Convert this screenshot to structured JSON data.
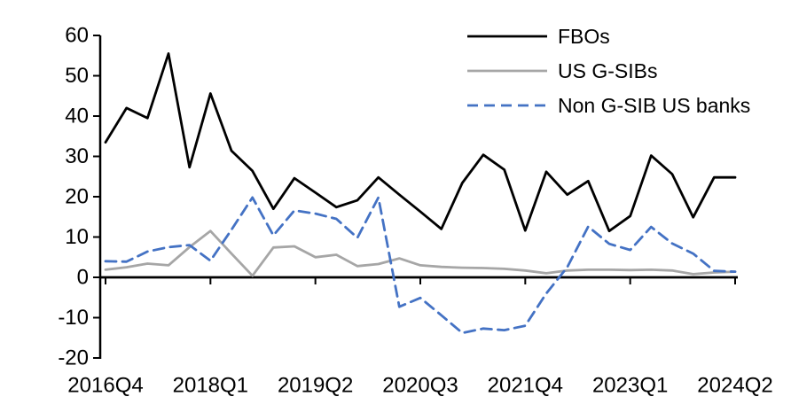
{
  "chart_data": {
    "type": "line",
    "title": "",
    "xlabel": "",
    "ylabel": "",
    "ylim": [
      -20,
      60
    ],
    "y_ticks": [
      60,
      50,
      40,
      30,
      20,
      10,
      0,
      -10,
      -20
    ],
    "grid": false,
    "legend_position": "top-right",
    "categories": [
      "2016Q4",
      "2017Q1",
      "2017Q2",
      "2017Q3",
      "2017Q4",
      "2018Q1",
      "2018Q2",
      "2018Q3",
      "2018Q4",
      "2019Q1",
      "2019Q2",
      "2019Q3",
      "2019Q4",
      "2020Q1",
      "2020Q2",
      "2020Q3",
      "2020Q4",
      "2021Q1",
      "2021Q2",
      "2021Q3",
      "2021Q4",
      "2022Q1",
      "2022Q2",
      "2022Q3",
      "2022Q4",
      "2023Q1",
      "2023Q2",
      "2023Q3",
      "2023Q4",
      "2024Q1",
      "2024Q2"
    ],
    "x_tick_labels": [
      "2016Q4",
      "2018Q1",
      "2019Q2",
      "2020Q3",
      "2021Q4",
      "2023Q1",
      "2024Q2"
    ],
    "x_tick_indices": [
      0,
      5,
      10,
      15,
      20,
      25,
      30
    ],
    "series": [
      {
        "name": "FBOs",
        "color": "#000000",
        "line_style": "solid",
        "values": [
          33.5,
          42.0,
          39.5,
          55.5,
          27.3,
          45.6,
          31.4,
          26.4,
          17.0,
          24.6,
          21.0,
          17.4,
          19.1,
          24.8,
          20.5,
          16.3,
          12.0,
          23.4,
          30.4,
          26.7,
          11.6,
          26.2,
          20.5,
          23.9,
          11.5,
          15.2,
          30.2,
          25.6,
          14.9,
          24.8,
          24.8
        ]
      },
      {
        "name": "US G-SIBs",
        "color": "#a6a6a6",
        "line_style": "solid",
        "values": [
          1.9,
          2.5,
          3.4,
          3.0,
          7.5,
          11.5,
          5.9,
          0.4,
          7.4,
          7.7,
          5.0,
          5.6,
          2.8,
          3.3,
          4.7,
          3.0,
          2.6,
          2.4,
          2.3,
          2.1,
          1.7,
          1.0,
          1.7,
          1.9,
          1.9,
          1.8,
          1.9,
          1.7,
          0.8,
          1.2,
          1.4
        ]
      },
      {
        "name": "Non G-SIB US banks",
        "color": "#4472c4",
        "line_style": "dashed",
        "values": [
          4.0,
          3.9,
          6.4,
          7.5,
          8.0,
          4.1,
          11.8,
          19.8,
          10.4,
          16.6,
          15.8,
          14.5,
          9.8,
          19.8,
          -7.3,
          -5.1,
          -9.4,
          -13.8,
          -12.7,
          -13.1,
          -12.0,
          -4.0,
          2.5,
          12.6,
          8.3,
          6.8,
          12.5,
          8.4,
          5.9,
          1.6,
          1.4
        ]
      }
    ]
  },
  "legend": {
    "items": [
      "FBOs",
      "US G-SIBs",
      "Non G-SIB US banks"
    ]
  },
  "colors": {
    "background": "#ffffff",
    "axis": "#000000",
    "text": "#000000"
  }
}
